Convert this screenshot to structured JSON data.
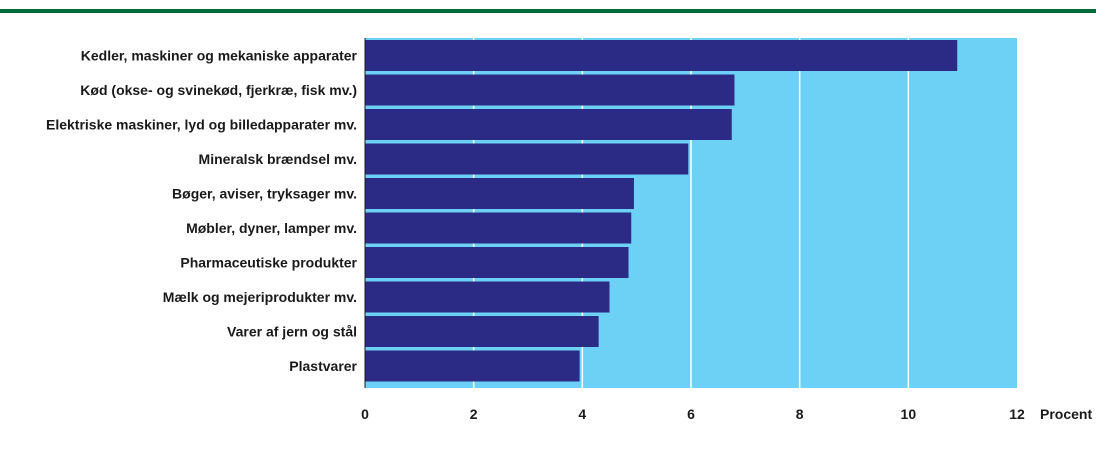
{
  "colors": {
    "rule": "#006b3c",
    "plot_bg": "#6dd0f5",
    "bar": "#2b2a85",
    "grid": "#ffffff"
  },
  "chart_data": {
    "type": "bar",
    "orientation": "horizontal",
    "categories": [
      "Kedler, maskiner og mekaniske apparater",
      "Kød (okse- og svinekød, fjerkræ, fisk mv.)",
      "Elektriske maskiner, lyd og billedapparater mv.",
      "Mineralsk brændsel mv.",
      "Bøger, aviser, tryksager mv.",
      "Møbler, dyner, lamper mv.",
      "Pharmaceutiske produkter",
      "Mælk og mejeriprodukter mv.",
      "Varer af jern og stål",
      "Plastvarer"
    ],
    "values": [
      10.9,
      6.8,
      6.75,
      5.95,
      4.95,
      4.9,
      4.85,
      4.5,
      4.3,
      3.95
    ],
    "xlim": [
      0,
      12
    ],
    "xticks": [
      "0",
      "2",
      "4",
      "6",
      "8",
      "10",
      "12"
    ],
    "xunit": "Procent",
    "grid": true
  }
}
